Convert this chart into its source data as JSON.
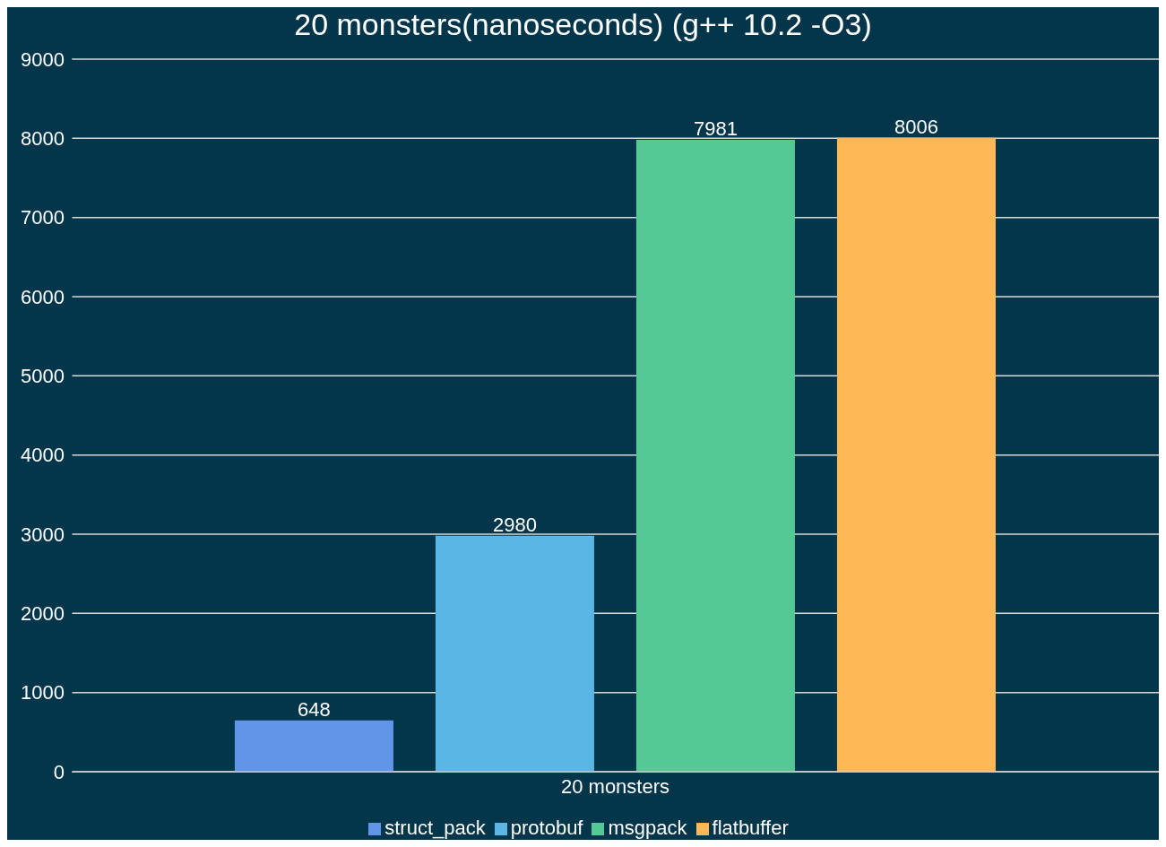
{
  "chart_data": {
    "type": "bar",
    "title": "20 monsters(nanoseconds) (g++ 10.2 -O3)",
    "categories": [
      "20 monsters"
    ],
    "series": [
      {
        "name": "struct_pack",
        "color": "#6095e8",
        "values": [
          648
        ]
      },
      {
        "name": "protobuf",
        "color": "#5ab6e4",
        "values": [
          2980
        ]
      },
      {
        "name": "msgpack",
        "color": "#55c995",
        "values": [
          7981
        ]
      },
      {
        "name": "flatbuffer",
        "color": "#ffb855",
        "values": [
          8006
        ]
      }
    ],
    "ylim": [
      0,
      9000
    ],
    "yticks": [
      0,
      1000,
      2000,
      3000,
      4000,
      5000,
      6000,
      7000,
      8000,
      9000
    ],
    "grid": "y",
    "legend": "bottom",
    "data_labels": true
  }
}
